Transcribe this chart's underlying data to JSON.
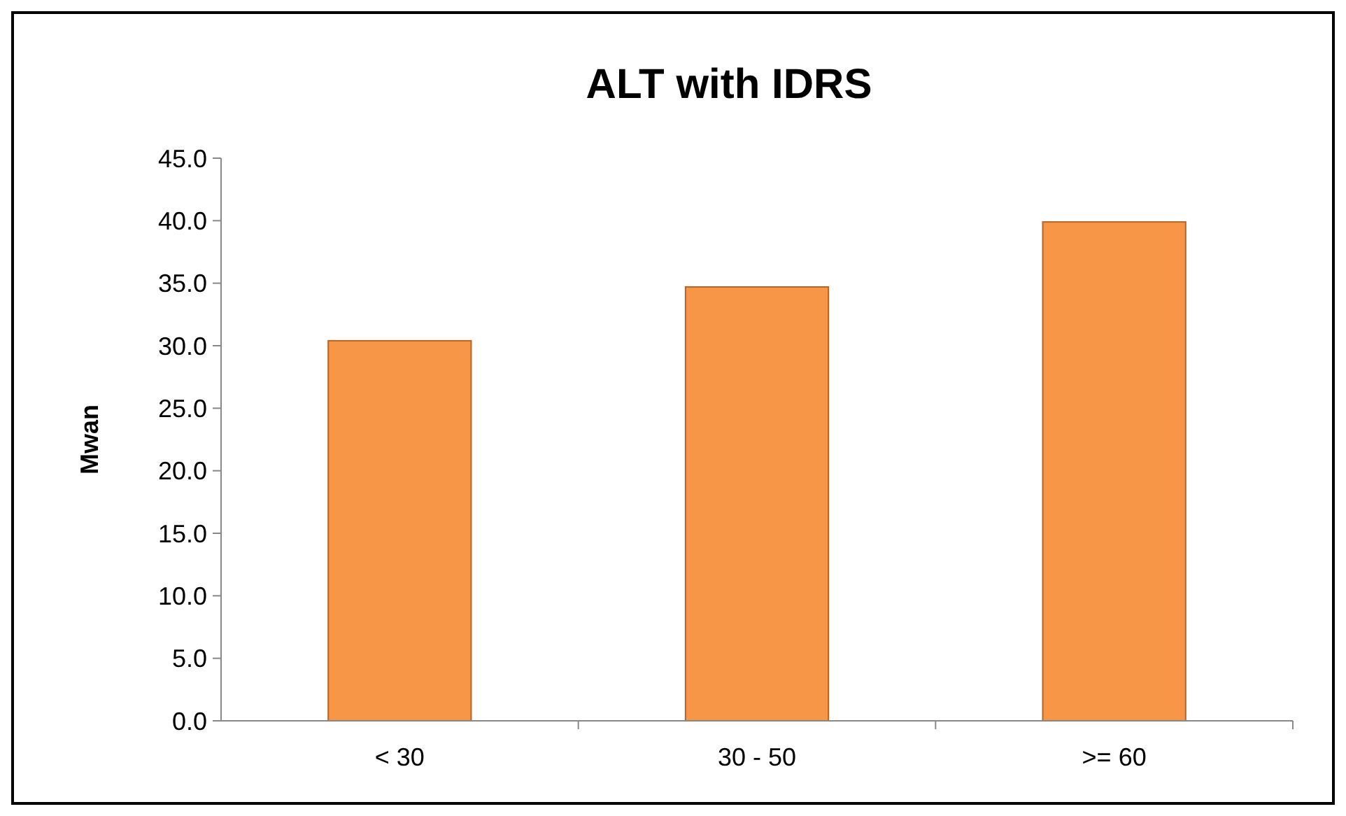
{
  "chart_data": {
    "type": "bar",
    "title": "ALT with IDRS",
    "ylabel": "Mwan",
    "categories": [
      "< 30",
      "30 - 50",
      ">= 60"
    ],
    "values": [
      30.4,
      34.7,
      39.9
    ],
    "color": "#f79646",
    "ylim": [
      0,
      45
    ],
    "yticks": [
      {
        "value": 0,
        "label": "0.0"
      },
      {
        "value": 5,
        "label": "5.0"
      },
      {
        "value": 10,
        "label": "10.0"
      },
      {
        "value": 15,
        "label": "15.0"
      },
      {
        "value": 20,
        "label": "20.0"
      },
      {
        "value": 25,
        "label": "25.0"
      },
      {
        "value": 30,
        "label": "30.0"
      },
      {
        "value": 35,
        "label": "35.0"
      },
      {
        "value": 40,
        "label": "40.0"
      },
      {
        "value": 45,
        "label": "45.0"
      }
    ],
    "grid": false
  }
}
